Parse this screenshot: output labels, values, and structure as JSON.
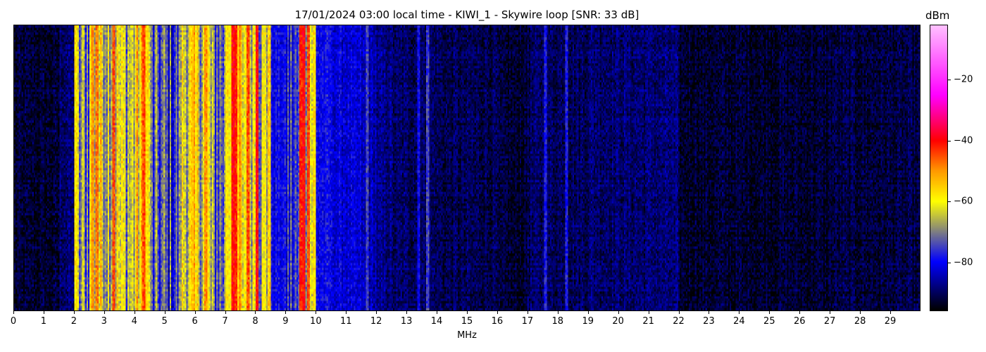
{
  "chart_data": {
    "type": "heatmap",
    "title": "17/01/2024 03:00 local time - KIWI_1 - Skywire loop [SNR: 33 dB]",
    "xlabel": "MHz",
    "ylabel": "",
    "xlim": [
      0,
      30
    ],
    "x_ticks": [
      "0",
      "1",
      "2",
      "3",
      "4",
      "5",
      "6",
      "7",
      "8",
      "9",
      "10",
      "11",
      "12",
      "13",
      "14",
      "15",
      "16",
      "17",
      "18",
      "19",
      "20",
      "21",
      "22",
      "23",
      "24",
      "25",
      "26",
      "27",
      "28",
      "29"
    ],
    "y_ticks_shown": false,
    "colorbar": {
      "label": "dBm",
      "range": [
        -96,
        -2
      ],
      "ticks": [
        -20,
        -40,
        -60,
        -80
      ],
      "tick_labels": [
        "−20",
        "−40",
        "−60",
        "−80"
      ],
      "colormap": [
        {
          "value": -96,
          "color": "#000000"
        },
        {
          "value": -88,
          "color": "#000080"
        },
        {
          "value": -80,
          "color": "#0000ff"
        },
        {
          "value": -70,
          "color": "#808080"
        },
        {
          "value": -60,
          "color": "#ffff00"
        },
        {
          "value": -50,
          "color": "#ff9900"
        },
        {
          "value": -40,
          "color": "#ff0000"
        },
        {
          "value": -25,
          "color": "#ff00ff"
        },
        {
          "value": -2,
          "color": "#ffc0ff"
        }
      ]
    },
    "band_mean_dbm_per_0_5MHz": [
      -93,
      -93,
      -93,
      -89,
      -70,
      -62,
      -62,
      -65,
      -60,
      -75,
      -76,
      -62,
      -62,
      -72,
      -55,
      -60,
      -65,
      -80,
      -78,
      -60,
      -80,
      -82,
      -83,
      -85,
      -88,
      -90,
      -90,
      -90,
      -91,
      -91,
      -91,
      -91,
      -93,
      -93,
      -90,
      -90,
      -90,
      -90,
      -89,
      -89,
      -89,
      -89,
      -89,
      -89,
      -93,
      -93,
      -93,
      -93,
      -93,
      -93,
      -93,
      -93,
      -93,
      -93,
      -92,
      -92,
      -92,
      -92,
      -92,
      -92
    ],
    "carriers": [
      {
        "mhz": 2.05,
        "dbm": -58
      },
      {
        "mhz": 2.6,
        "dbm": -50
      },
      {
        "mhz": 2.75,
        "dbm": -48
      },
      {
        "mhz": 3.3,
        "dbm": -45
      },
      {
        "mhz": 4.3,
        "dbm": -45
      },
      {
        "mhz": 5.95,
        "dbm": -55
      },
      {
        "mhz": 6.35,
        "dbm": -50
      },
      {
        "mhz": 7.25,
        "dbm": -40
      },
      {
        "mhz": 7.35,
        "dbm": -42
      },
      {
        "mhz": 7.75,
        "dbm": -45
      },
      {
        "mhz": 8.05,
        "dbm": -40
      },
      {
        "mhz": 8.45,
        "dbm": -55
      },
      {
        "mhz": 9.5,
        "dbm": -42
      },
      {
        "mhz": 9.6,
        "dbm": -40
      },
      {
        "mhz": 9.75,
        "dbm": -45
      },
      {
        "mhz": 11.7,
        "dbm": -75
      },
      {
        "mhz": 13.4,
        "dbm": -80
      },
      {
        "mhz": 13.7,
        "dbm": -75
      },
      {
        "mhz": 17.6,
        "dbm": -78
      },
      {
        "mhz": 18.3,
        "dbm": -78
      }
    ]
  }
}
